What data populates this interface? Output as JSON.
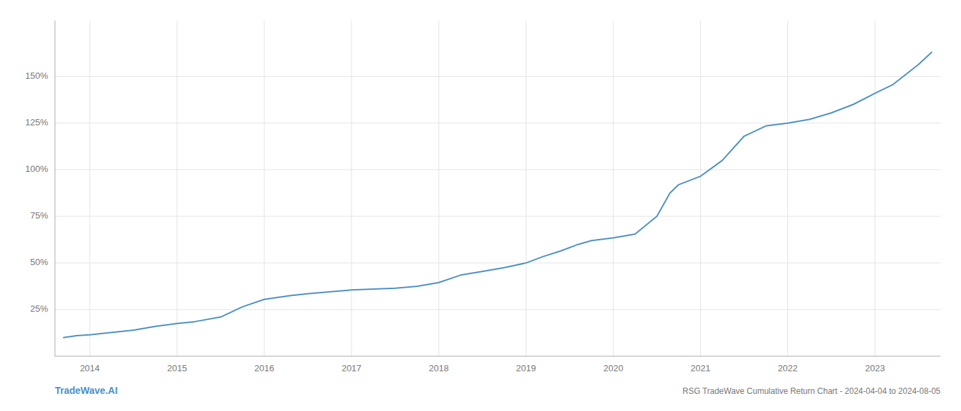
{
  "chart_data": {
    "type": "line",
    "title": "RSG TradeWave Cumulative Return Chart - 2024-04-04 to 2024-08-05",
    "annotations": [
      "TradeWave.AI"
    ],
    "color": "#4a90c4",
    "grid": true,
    "x": [
      2013.7,
      2013.85,
      2014.0,
      2014.2,
      2014.5,
      2014.75,
      2015.0,
      2015.2,
      2015.5,
      2015.75,
      2016.0,
      2016.15,
      2016.3,
      2016.5,
      2016.75,
      2017.0,
      2017.25,
      2017.5,
      2017.75,
      2018.0,
      2018.25,
      2018.5,
      2018.75,
      2019.0,
      2019.2,
      2019.4,
      2019.6,
      2019.75,
      2020.0,
      2020.25,
      2020.5,
      2020.65,
      2020.75,
      2021.0,
      2021.25,
      2021.5,
      2021.75,
      2022.0,
      2022.25,
      2022.5,
      2022.75,
      2023.0,
      2023.2,
      2023.5,
      2023.65
    ],
    "values": [
      0.1,
      0.11,
      0.115,
      0.125,
      0.14,
      0.16,
      0.175,
      0.185,
      0.21,
      0.265,
      0.305,
      0.315,
      0.325,
      0.335,
      0.345,
      0.355,
      0.36,
      0.365,
      0.375,
      0.395,
      0.435,
      0.455,
      0.475,
      0.5,
      0.535,
      0.565,
      0.6,
      0.62,
      0.635,
      0.655,
      0.75,
      0.875,
      0.92,
      0.965,
      1.05,
      1.18,
      1.235,
      1.25,
      1.27,
      1.305,
      1.35,
      1.41,
      1.455,
      1.565,
      1.63
    ],
    "xlim": [
      2013.6,
      2023.75
    ],
    "xticks": [
      2014,
      2015,
      2016,
      2017,
      2018,
      2019,
      2020,
      2021,
      2022,
      2023
    ],
    "ylim": [
      0.0,
      1.8
    ],
    "yticks": [
      {
        "value": 0.25,
        "label": "25%"
      },
      {
        "value": 0.5,
        "label": "50%"
      },
      {
        "value": 0.75,
        "label": "75%"
      },
      {
        "value": 1.0,
        "label": "100%"
      },
      {
        "value": 1.25,
        "label": "125%"
      },
      {
        "value": 1.5,
        "label": "150%"
      }
    ]
  }
}
